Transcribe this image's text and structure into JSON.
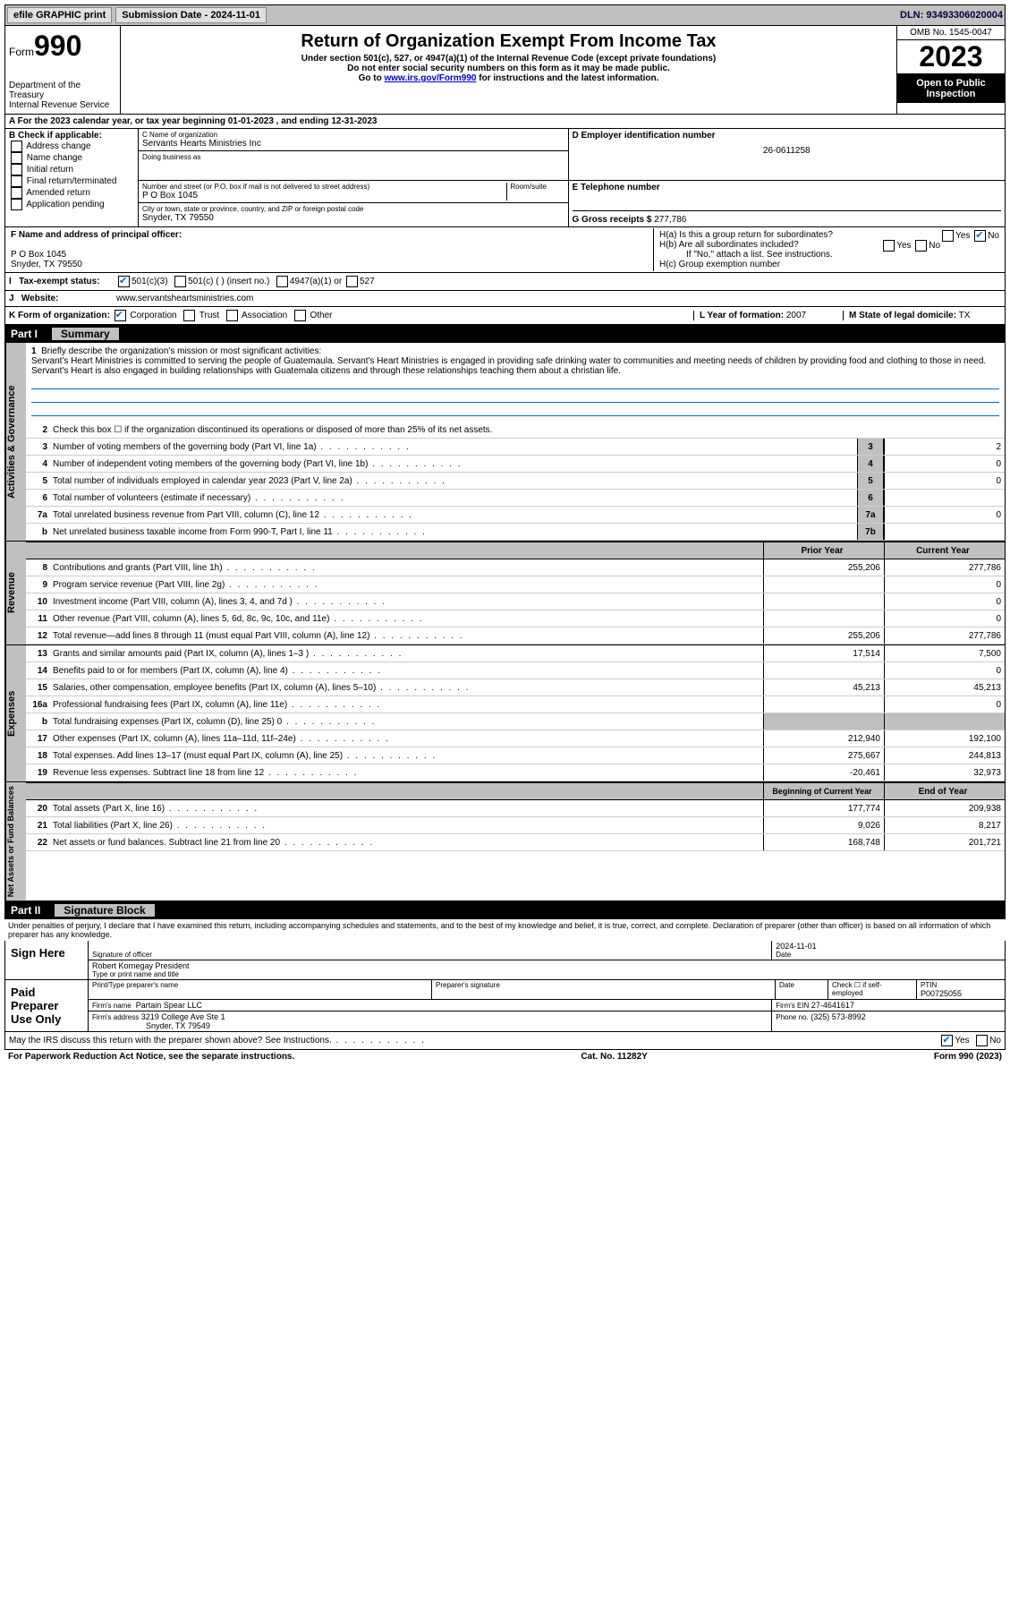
{
  "topbar": {
    "efile": "efile GRAPHIC print",
    "submission": "Submission Date - 2024-11-01",
    "dln": "DLN: 93493306020004"
  },
  "header": {
    "form_prefix": "Form",
    "form_num": "990",
    "dept": "Department of the Treasury",
    "irs": "Internal Revenue Service",
    "title": "Return of Organization Exempt From Income Tax",
    "sub1": "Under section 501(c), 527, or 4947(a)(1) of the Internal Revenue Code (except private foundations)",
    "sub2": "Do not enter social security numbers on this form as it may be made public.",
    "sub3_prefix": "Go to ",
    "sub3_link": "www.irs.gov/Form990",
    "sub3_suffix": " for instructions and the latest information.",
    "omb": "OMB No. 1545-0047",
    "year": "2023",
    "open": "Open to Public Inspection"
  },
  "rowA": "A For the 2023 calendar year, or tax year beginning 01-01-2023   , and ending 12-31-2023",
  "colB": {
    "title": "B Check if applicable:",
    "items": [
      "Address change",
      "Name change",
      "Initial return",
      "Final return/terminated",
      "Amended return",
      "Application pending"
    ]
  },
  "colC": {
    "name_label": "C Name of organization",
    "name": "Servants Hearts Ministries Inc",
    "dba_label": "Doing business as",
    "addr_label": "Number and street (or P.O. box if mail is not delivered to street address)",
    "addr": "P O Box 1045",
    "room_label": "Room/suite",
    "city_label": "City or town, state or province, country, and ZIP or foreign postal code",
    "city": "Snyder, TX  79550"
  },
  "colD": {
    "label": "D Employer identification number",
    "value": "26-0611258"
  },
  "colE": {
    "label": "E Telephone number"
  },
  "colG": {
    "label": "G Gross receipts $",
    "value": "277,786"
  },
  "rowF": {
    "label": "F Name and address of principal officer:",
    "addr1": "P O Box 1045",
    "addr2": "Snyder, TX  79550"
  },
  "rowH": {
    "a": "H(a)  Is this a group return for subordinates?",
    "b": "H(b)  Are all subordinates included?",
    "note": "If \"No,\" attach a list. See instructions.",
    "c": "H(c)  Group exemption number"
  },
  "rowI": {
    "label": "Tax-exempt status:",
    "opts": [
      "501(c)(3)",
      "501(c) (  ) (insert no.)",
      "4947(a)(1) or",
      "527"
    ]
  },
  "rowJ": {
    "label": "Website:",
    "value": "www.servantsheartsministries.com"
  },
  "rowK": {
    "label": "K Form of organization:",
    "opts": [
      "Corporation",
      "Trust",
      "Association",
      "Other"
    ]
  },
  "rowL": {
    "label": "L Year of formation:",
    "value": "2007"
  },
  "rowM": {
    "label": "M State of legal domicile:",
    "value": "TX"
  },
  "part1": {
    "header": "Part I",
    "title": "Summary",
    "line1_label": "Briefly describe the organization's mission or most significant activities:",
    "mission": "Servant's Heart Ministries is committed to serving the people of Guatemaula. Servant's Heart Ministries is engaged in providing safe drinking water to communities and meeting needs of children by providing food and clothing to those in need. Servant's Heart is also engaged in building relationships with Guatemala citizens and through these relationships teaching them about a christian life.",
    "line2": "Check this box  ☐  if the organization discontinued its operations or disposed of more than 25% of its net assets.",
    "lines_ag": [
      {
        "n": "3",
        "d": "Number of voting members of the governing body (Part VI, line 1a)",
        "b": "3",
        "v": "2"
      },
      {
        "n": "4",
        "d": "Number of independent voting members of the governing body (Part VI, line 1b)",
        "b": "4",
        "v": "0"
      },
      {
        "n": "5",
        "d": "Total number of individuals employed in calendar year 2023 (Part V, line 2a)",
        "b": "5",
        "v": "0"
      },
      {
        "n": "6",
        "d": "Total number of volunteers (estimate if necessary)",
        "b": "6",
        "v": ""
      },
      {
        "n": "7a",
        "d": "Total unrelated business revenue from Part VIII, column (C), line 12",
        "b": "7a",
        "v": "0"
      },
      {
        "n": "b",
        "d": "Net unrelated business taxable income from Form 990-T, Part I, line 11",
        "b": "7b",
        "v": ""
      }
    ],
    "rev_hd": {
      "py": "Prior Year",
      "cy": "Current Year"
    },
    "lines_rev": [
      {
        "n": "8",
        "d": "Contributions and grants (Part VIII, line 1h)",
        "py": "255,206",
        "cy": "277,786"
      },
      {
        "n": "9",
        "d": "Program service revenue (Part VIII, line 2g)",
        "py": "",
        "cy": "0"
      },
      {
        "n": "10",
        "d": "Investment income (Part VIII, column (A), lines 3, 4, and 7d )",
        "py": "",
        "cy": "0"
      },
      {
        "n": "11",
        "d": "Other revenue (Part VIII, column (A), lines 5, 6d, 8c, 9c, 10c, and 11e)",
        "py": "",
        "cy": "0"
      },
      {
        "n": "12",
        "d": "Total revenue—add lines 8 through 11 (must equal Part VIII, column (A), line 12)",
        "py": "255,206",
        "cy": "277,786"
      }
    ],
    "lines_exp": [
      {
        "n": "13",
        "d": "Grants and similar amounts paid (Part IX, column (A), lines 1–3 )",
        "py": "17,514",
        "cy": "7,500"
      },
      {
        "n": "14",
        "d": "Benefits paid to or for members (Part IX, column (A), line 4)",
        "py": "",
        "cy": "0"
      },
      {
        "n": "15",
        "d": "Salaries, other compensation, employee benefits (Part IX, column (A), lines 5–10)",
        "py": "45,213",
        "cy": "45,213"
      },
      {
        "n": "16a",
        "d": "Professional fundraising fees (Part IX, column (A), line 11e)",
        "py": "",
        "cy": "0"
      },
      {
        "n": "b",
        "d": "Total fundraising expenses (Part IX, column (D), line 25) 0",
        "py": null,
        "cy": null
      },
      {
        "n": "17",
        "d": "Other expenses (Part IX, column (A), lines 11a–11d, 11f–24e)",
        "py": "212,940",
        "cy": "192,100"
      },
      {
        "n": "18",
        "d": "Total expenses. Add lines 13–17 (must equal Part IX, column (A), line 25)",
        "py": "275,667",
        "cy": "244,813"
      },
      {
        "n": "19",
        "d": "Revenue less expenses. Subtract line 18 from line 12",
        "py": "-20,461",
        "cy": "32,973"
      }
    ],
    "na_hd": {
      "py": "Beginning of Current Year",
      "cy": "End of Year"
    },
    "lines_na": [
      {
        "n": "20",
        "d": "Total assets (Part X, line 16)",
        "py": "177,774",
        "cy": "209,938"
      },
      {
        "n": "21",
        "d": "Total liabilities (Part X, line 26)",
        "py": "9,026",
        "cy": "8,217"
      },
      {
        "n": "22",
        "d": "Net assets or fund balances. Subtract line 21 from line 20",
        "py": "168,748",
        "cy": "201,721"
      }
    ],
    "vtabs": {
      "ag": "Activities & Governance",
      "rev": "Revenue",
      "exp": "Expenses",
      "na": "Net Assets or Fund Balances"
    }
  },
  "part2": {
    "header": "Part II",
    "title": "Signature Block",
    "declare": "Under penalties of perjury, I declare that I have examined this return, including accompanying schedules and statements, and to the best of my knowledge and belief, it is true, correct, and complete. Declaration of preparer (other than officer) is based on all information of which preparer has any knowledge."
  },
  "sign": {
    "left": "Sign Here",
    "sig_label": "Signature of officer",
    "date_label": "Date",
    "date": "2024-11-01",
    "name": "Robert Kornegay  President",
    "name_label": "Type or print name and title"
  },
  "prep": {
    "left": "Paid Preparer Use Only",
    "pt_label": "Print/Type preparer's name",
    "ps_label": "Preparer's signature",
    "d_label": "Date",
    "check_label": "Check ☐ if self-employed",
    "ptin_label": "PTIN",
    "ptin": "P00725055",
    "firm_label": "Firm's name",
    "firm": "Partain Spear LLC",
    "ein_label": "Firm's EIN",
    "ein": "27-4641617",
    "addr_label": "Firm's address",
    "addr": "3219 College Ave Ste 1",
    "addr2": "Snyder, TX  79549",
    "phone_label": "Phone no.",
    "phone": "(325) 573-8992"
  },
  "discuss": "May the IRS discuss this return with the preparer shown above? See Instructions.",
  "footer": {
    "pra": "For Paperwork Reduction Act Notice, see the separate instructions.",
    "cat": "Cat. No. 11282Y",
    "form": "Form 990 (2023)"
  },
  "yes": "Yes",
  "no": "No"
}
